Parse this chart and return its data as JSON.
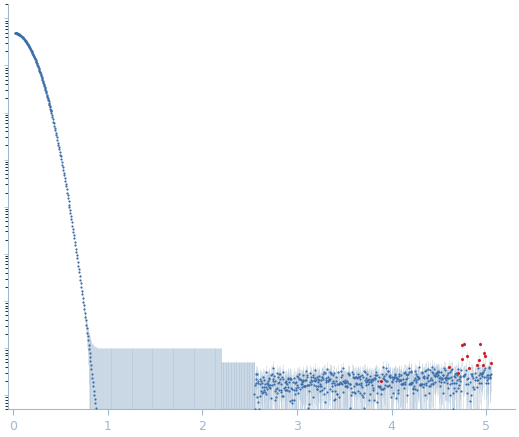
{
  "title": "",
  "xlabel": "",
  "ylabel": "",
  "xlim": [
    -0.05,
    5.3
  ],
  "bg_color": "#ffffff",
  "axes_color": "#a0b8d0",
  "dot_color": "#3a6eaa",
  "error_color": "#a0b8d0",
  "outlier_color": "#cc2222",
  "tick_label_color": "#a0b8d0",
  "tick_fontsize": 9,
  "x_ticks": [
    0,
    1,
    2,
    3,
    4,
    5
  ],
  "seed": 42
}
